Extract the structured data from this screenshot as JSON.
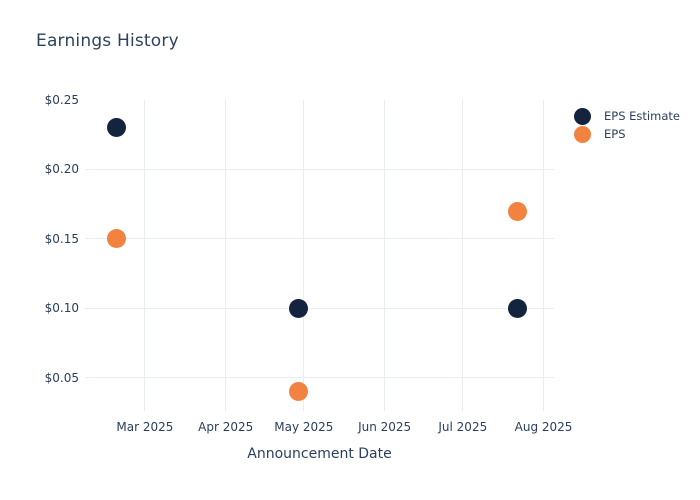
{
  "title": "Earnings History",
  "colors": {
    "background": "#ffffff",
    "text": "#2a3f5f",
    "grid": "#e9ecf5",
    "eps_estimate": "#14243e",
    "eps": "#f2823f"
  },
  "legend": {
    "items": [
      {
        "label": "EPS Estimate",
        "color": "#14243e"
      },
      {
        "label": "EPS",
        "color": "#f2823f"
      }
    ]
  },
  "chart_data": {
    "type": "scatter",
    "title": "Earnings History",
    "xlabel": "Announcement Date",
    "ylabel": "",
    "x_domain": [
      "2025-02-06",
      "2025-08-05"
    ],
    "y_domain": [
      0.026,
      0.25
    ],
    "grid": true,
    "legend_position": "top-right",
    "marker_size": 19,
    "x_ticks": [
      {
        "value": "2025-03-01",
        "label": "Mar 2025"
      },
      {
        "value": "2025-04-01",
        "label": "Apr 2025"
      },
      {
        "value": "2025-05-01",
        "label": "May 2025"
      },
      {
        "value": "2025-06-01",
        "label": "Jun 2025"
      },
      {
        "value": "2025-07-01",
        "label": "Jul 2025"
      },
      {
        "value": "2025-08-01",
        "label": "Aug 2025"
      }
    ],
    "y_ticks": [
      {
        "value": 0.25,
        "label": "$0.25",
        "gridline": false
      },
      {
        "value": 0.2,
        "label": "$0.20",
        "gridline": true
      },
      {
        "value": 0.15,
        "label": "$0.15",
        "gridline": true
      },
      {
        "value": 0.1,
        "label": "$0.10",
        "gridline": true
      },
      {
        "value": 0.05,
        "label": "$0.05",
        "gridline": true
      }
    ],
    "series": [
      {
        "name": "EPS Estimate",
        "color": "#14243e",
        "points": [
          {
            "x": "2025-02-18",
            "y": 0.23
          },
          {
            "x": "2025-04-29",
            "y": 0.1
          },
          {
            "x": "2025-07-22",
            "y": 0.1
          }
        ]
      },
      {
        "name": "EPS",
        "color": "#f2823f",
        "points": [
          {
            "x": "2025-02-18",
            "y": 0.15
          },
          {
            "x": "2025-04-29",
            "y": 0.04
          },
          {
            "x": "2025-07-22",
            "y": 0.17
          }
        ]
      }
    ]
  }
}
